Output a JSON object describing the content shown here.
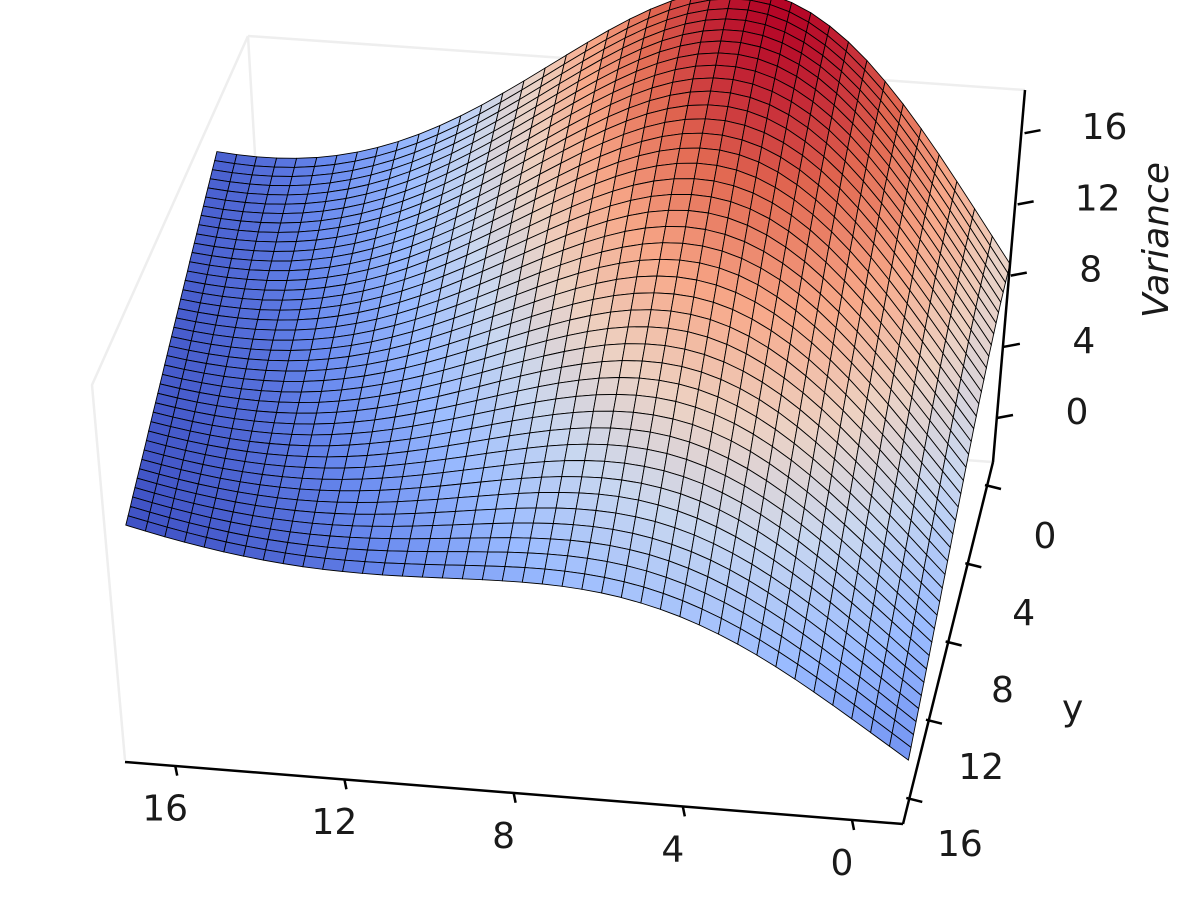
{
  "chart_data": {
    "type": "surface3d",
    "title": "",
    "colormap": "coolwarm",
    "colormap_stops": [
      "#3b4cc0",
      "#6788ee",
      "#9abbff",
      "#c9d7f0",
      "#edd1c2",
      "#f7a889",
      "#e26952",
      "#b40426"
    ],
    "mesh_color": "#000000",
    "x_axis": {
      "label": "",
      "range": [
        0,
        16
      ],
      "ticks": [
        "16",
        "12",
        "8",
        "4",
        "0"
      ],
      "tick_values": [
        16,
        12,
        8,
        4,
        0
      ]
    },
    "y_axis": {
      "label": "y",
      "range": [
        0,
        16
      ],
      "ticks": [
        "0",
        "4",
        "8",
        "12",
        "16"
      ],
      "tick_values": [
        0,
        4,
        8,
        12,
        16
      ]
    },
    "z_axis": {
      "label": "Variance",
      "label_style": "italic",
      "range": [
        0,
        16
      ],
      "ticks": [
        "0",
        "4",
        "8",
        "12",
        "16"
      ],
      "tick_values": [
        0,
        4,
        8,
        12,
        16
      ]
    },
    "grid": false,
    "surface": {
      "grid_size": 40,
      "peak_value": 16,
      "peak_location": {
        "x": 5,
        "y": 0
      },
      "edge_value_min": 0
    }
  }
}
